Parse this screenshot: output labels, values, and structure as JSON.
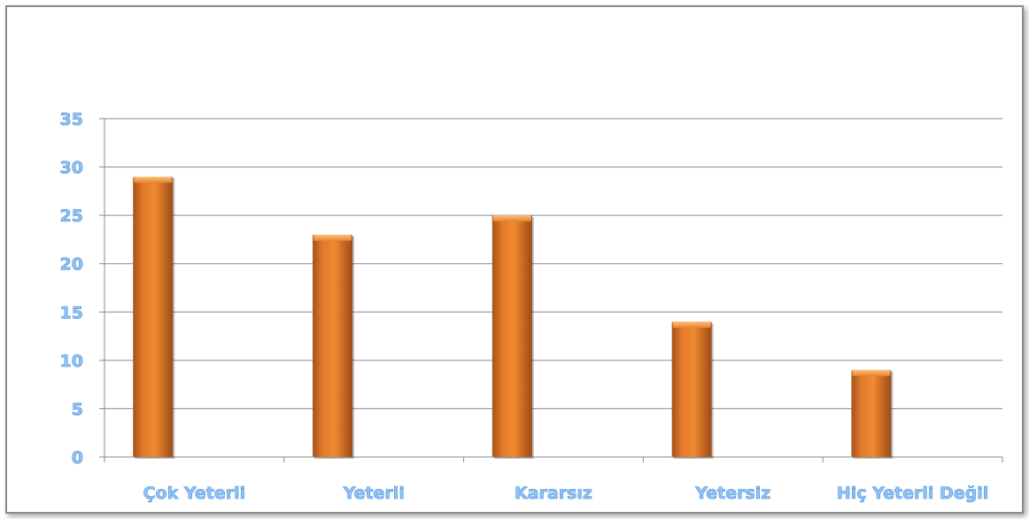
{
  "chart_data": {
    "type": "bar",
    "categories": [
      "Çok Yeterli",
      "Yeterli",
      "Kararsız",
      "Yetersiz",
      "Hiç Yeterli Değil"
    ],
    "values": [
      29,
      23,
      25,
      14,
      9
    ],
    "ylim": [
      0,
      35
    ],
    "yticks": [
      0,
      5,
      10,
      15,
      20,
      25,
      30,
      35
    ],
    "grid": true,
    "bar_color": "#e87f2a",
    "label_color": "#8fc3f5",
    "title": "",
    "xlabel": "",
    "ylabel": ""
  }
}
